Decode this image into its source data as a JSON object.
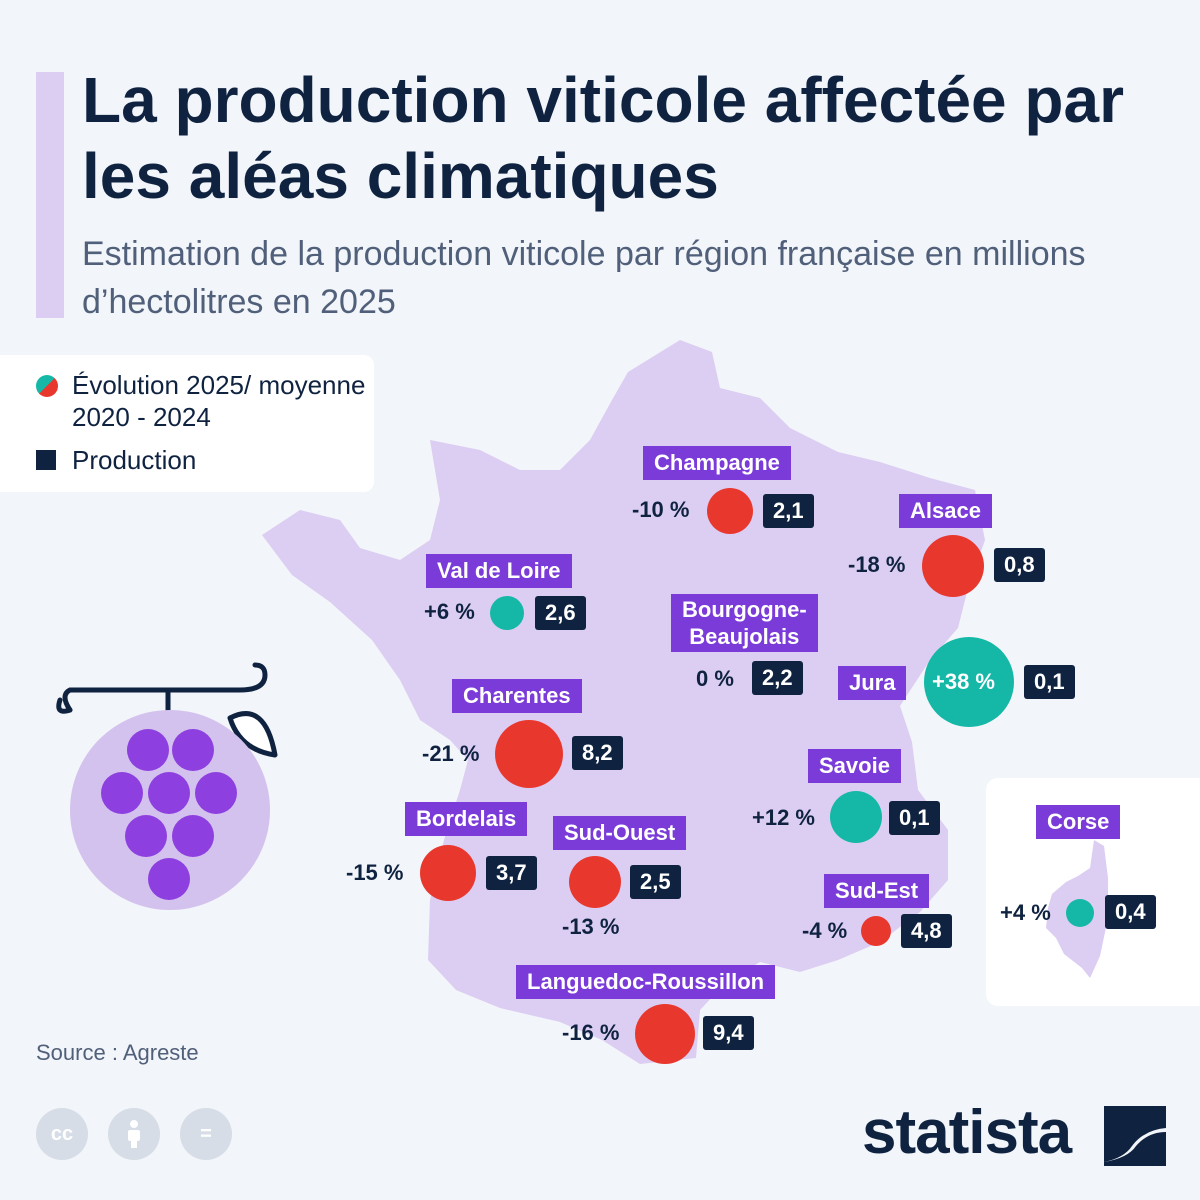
{
  "title": "La production viticole affectée par les aléas climatiques",
  "subtitle": "Estimation de la production viticole par région française en millions d’hectolitres en 2025",
  "legend": {
    "evolution_label": "Évolution 2025/ moyenne 2020 - 2024",
    "production_label": "Production"
  },
  "colors": {
    "decrease": "#e8382e",
    "increase": "#15b8a6",
    "label_bg": "#7a3bd9",
    "production_bg": "#0f2341",
    "map_fill": "#dccdf2"
  },
  "regions": [
    {
      "id": "champagne",
      "name": "Champagne",
      "evolution": "-10 %",
      "production": "2,1",
      "trend": "decrease"
    },
    {
      "id": "alsace",
      "name": "Alsace",
      "evolution": "-18 %",
      "production": "0,8",
      "trend": "decrease"
    },
    {
      "id": "val-de-loire",
      "name": "Val de Loire",
      "evolution": "+6 %",
      "production": "2,6",
      "trend": "increase"
    },
    {
      "id": "bourgogne",
      "name": "Bourgogne-Beaujolais",
      "name_line1": "Bourgogne-",
      "name_line2": "Beaujolais",
      "evolution": "0 %",
      "production": "2,2",
      "trend": "flat"
    },
    {
      "id": "jura",
      "name": "Jura",
      "evolution": "+38 %",
      "production": "0,1",
      "trend": "increase"
    },
    {
      "id": "charentes",
      "name": "Charentes",
      "evolution": "-21 %",
      "production": "8,2",
      "trend": "decrease"
    },
    {
      "id": "savoie",
      "name": "Savoie",
      "evolution": "+12 %",
      "production": "0,1",
      "trend": "increase"
    },
    {
      "id": "bordelais",
      "name": "Bordelais",
      "evolution": "-15 %",
      "production": "3,7",
      "trend": "decrease"
    },
    {
      "id": "sud-ouest",
      "name": "Sud-Ouest",
      "evolution": "-13 %",
      "production": "2,5",
      "trend": "decrease"
    },
    {
      "id": "sud-est",
      "name": "Sud-Est",
      "evolution": "-4 %",
      "production": "4,8",
      "trend": "decrease"
    },
    {
      "id": "languedoc",
      "name": "Languedoc-Roussillon",
      "evolution": "-16 %",
      "production": "9,4",
      "trend": "decrease"
    },
    {
      "id": "corse",
      "name": "Corse",
      "evolution": "+4 %",
      "production": "0,4",
      "trend": "increase"
    }
  ],
  "source": "Source : Agreste",
  "license_icons": [
    "creative-commons-icon",
    "attribution-icon",
    "no-derivatives-icon"
  ],
  "license_text": {
    "cc": "cc",
    "nd": "="
  },
  "brand": "statista"
}
